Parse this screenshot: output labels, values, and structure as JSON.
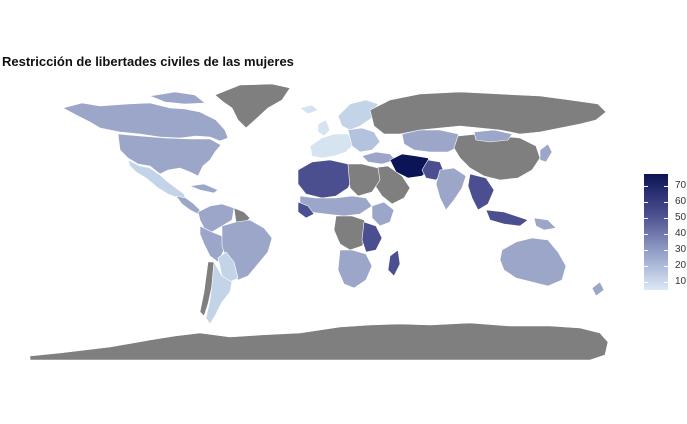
{
  "title": "Restricción de libertades civiles de las mujeres",
  "legend": {
    "ticks": [
      "70",
      "60",
      "50",
      "40",
      "30",
      "20",
      "10"
    ],
    "low_color": "#dbe9f6",
    "high_color": "#0b1456",
    "na_color": "#7f7f7f"
  }
}
